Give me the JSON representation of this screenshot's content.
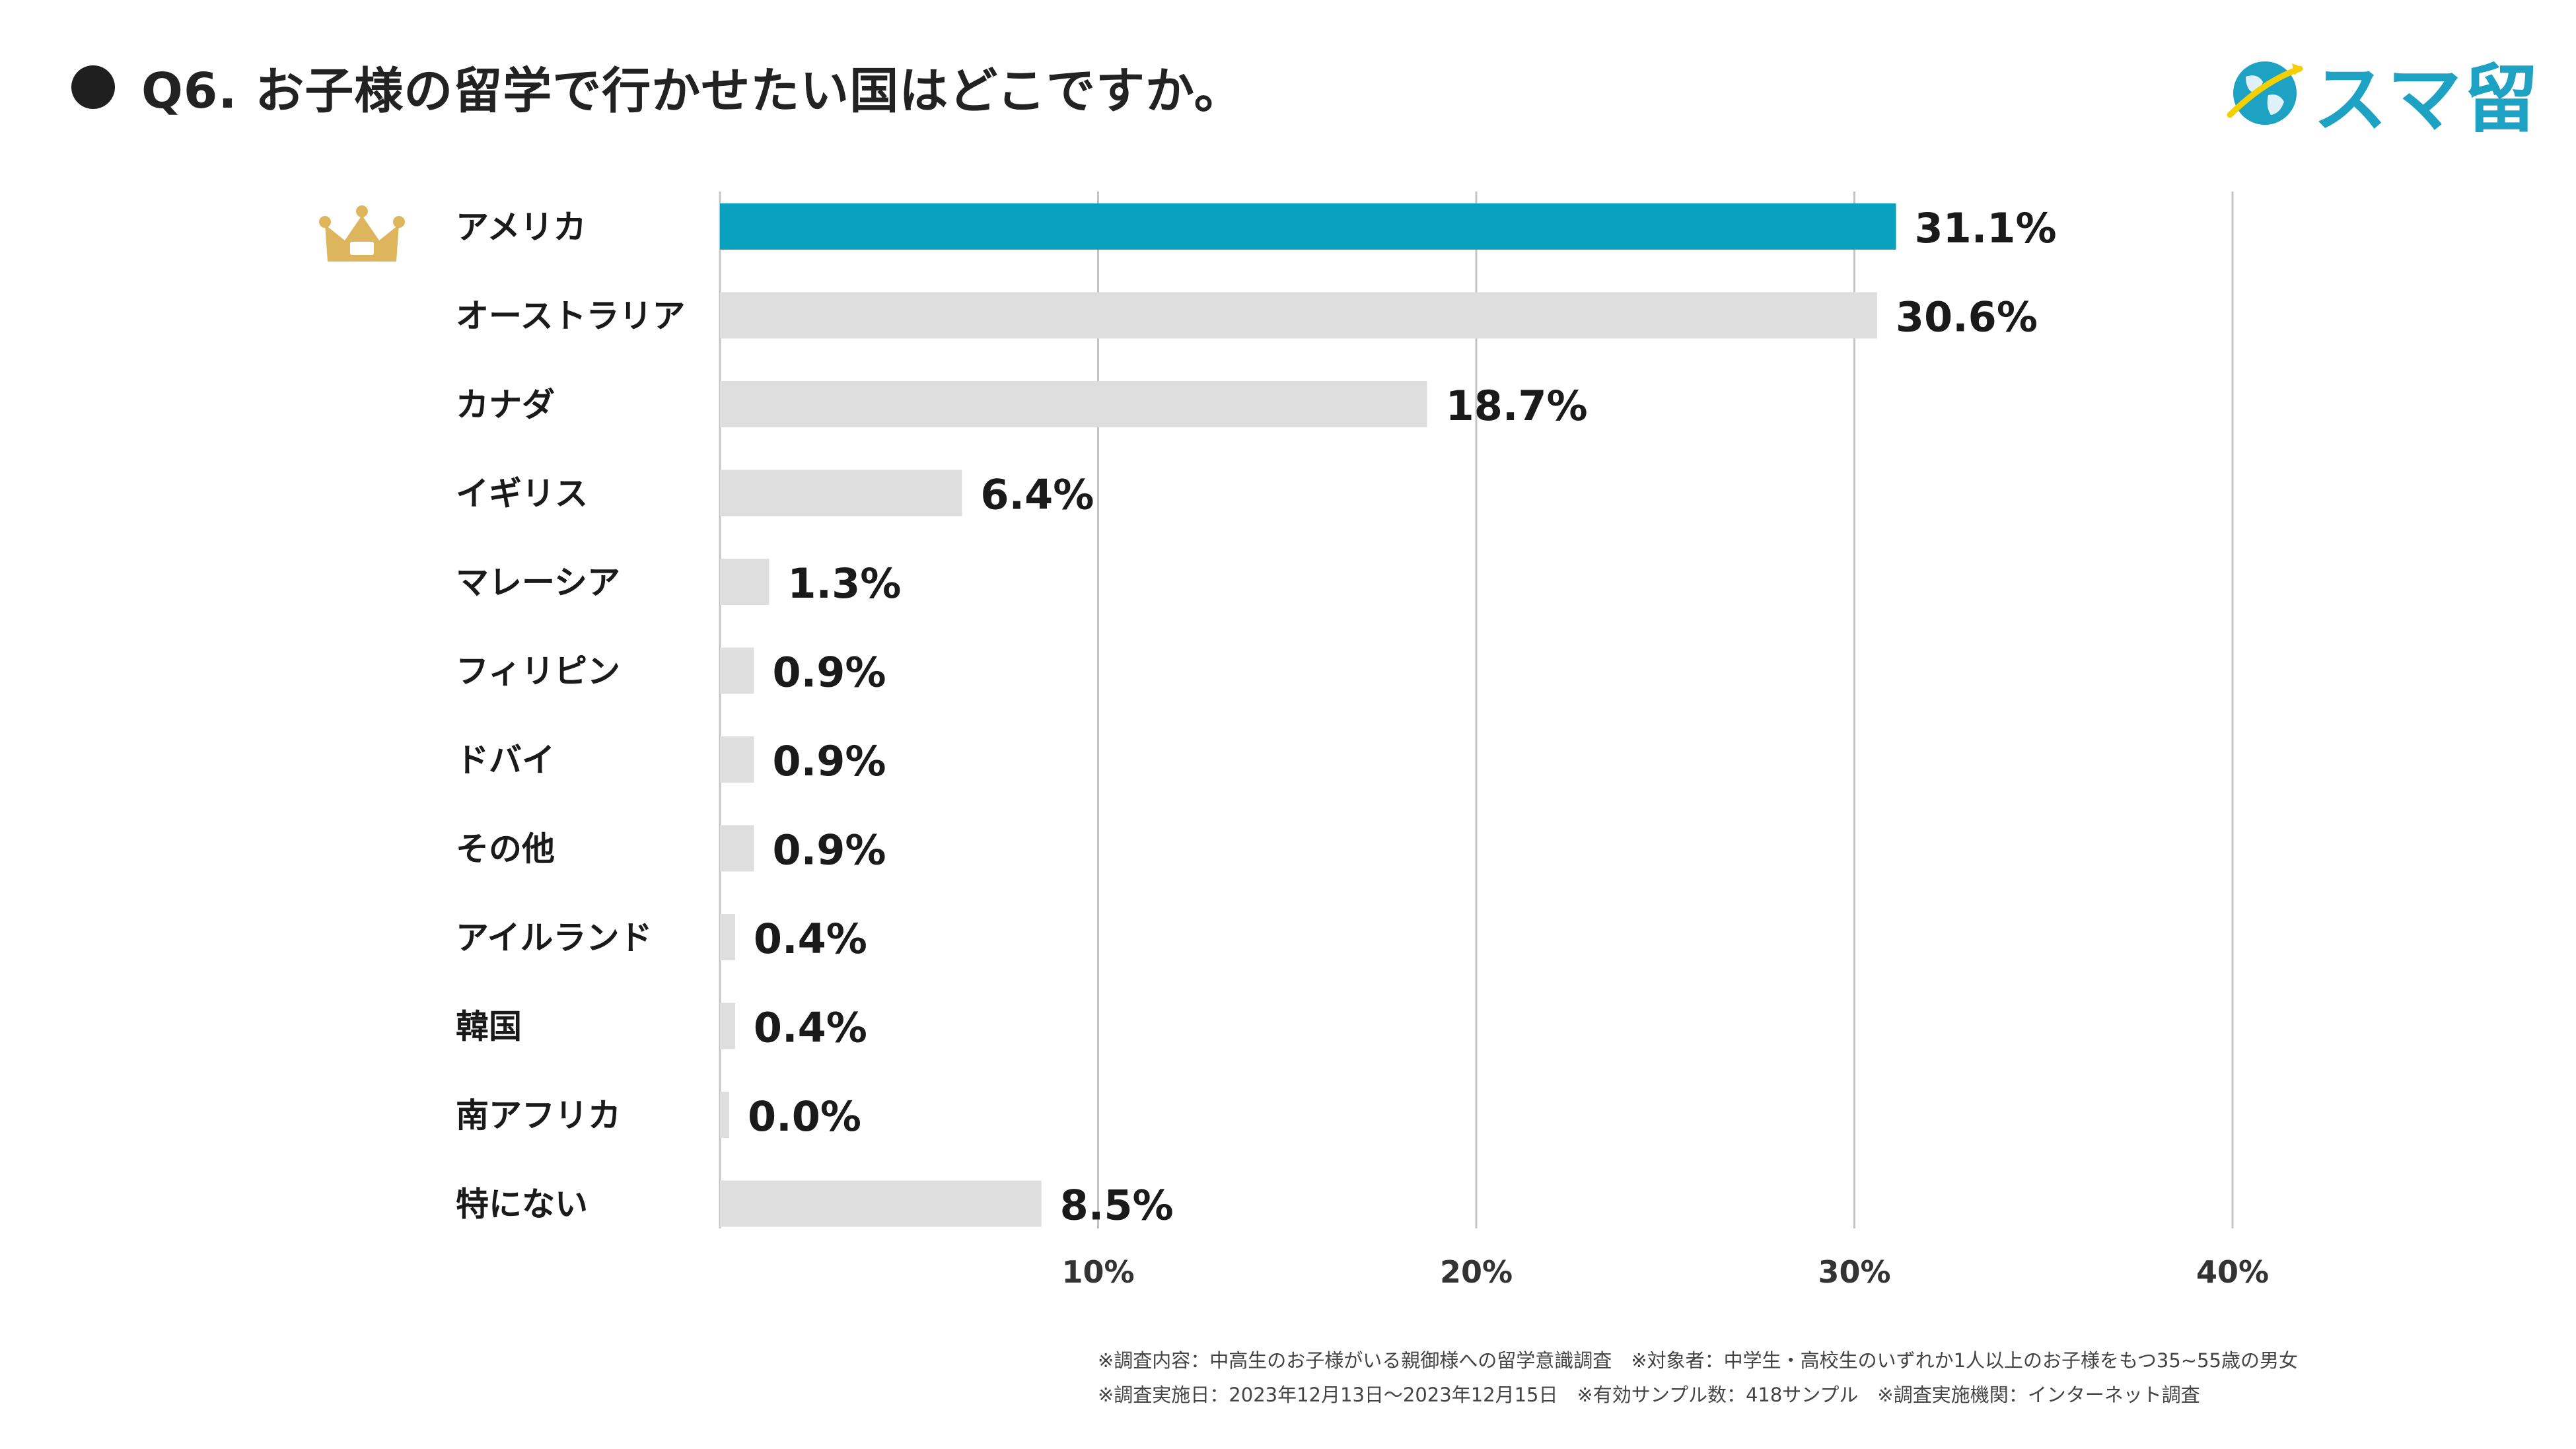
{
  "header": {
    "title": "Q6. お子様の留学で行かせたい国はどこですか。",
    "logo_text": "スマ留"
  },
  "colors": {
    "highlight_bar": "#0aa1bf",
    "default_bar": "#dedede",
    "gridline": "#c4c4c4",
    "crown": "#dcb55c",
    "brand": "#1ea2c4"
  },
  "chart_data": {
    "type": "bar",
    "orientation": "horizontal",
    "title": "Q6. お子様の留学で行かせたい国はどこですか。",
    "categories": [
      "アメリカ",
      "オーストラリア",
      "カナダ",
      "イギリス",
      "マレーシア",
      "フィリピン",
      "ドバイ",
      "その他",
      "アイルランド",
      "韓国",
      "南アフリカ",
      "特にない"
    ],
    "values": [
      31.1,
      30.6,
      18.7,
      6.4,
      1.3,
      0.9,
      0.9,
      0.9,
      0.4,
      0.4,
      0.0,
      8.5
    ],
    "value_labels": [
      "31.1%",
      "30.6%",
      "18.7%",
      "6.4%",
      "1.3%",
      "0.9%",
      "0.9%",
      "0.9%",
      "0.4%",
      "0.4%",
      "0.0%",
      "8.5%"
    ],
    "highlight_index": 0,
    "xlim": [
      0,
      40
    ],
    "xticks": [
      10,
      20,
      30,
      40
    ],
    "xtick_labels": [
      "10%",
      "20%",
      "30%",
      "40%"
    ],
    "xlabel": "",
    "ylabel": "",
    "grid": true
  },
  "notes": {
    "line1": "※調査内容：中高生のお子様がいる親御様への留学意識調査　※対象者：中学生・高校生のいずれか1人以上のお子様をもつ35~55歳の男女",
    "line2": "※調査実施日：2023年12月13日～2023年12月15日　※有効サンプル数：418サンプル　※調査実施機関：インターネット調査"
  }
}
